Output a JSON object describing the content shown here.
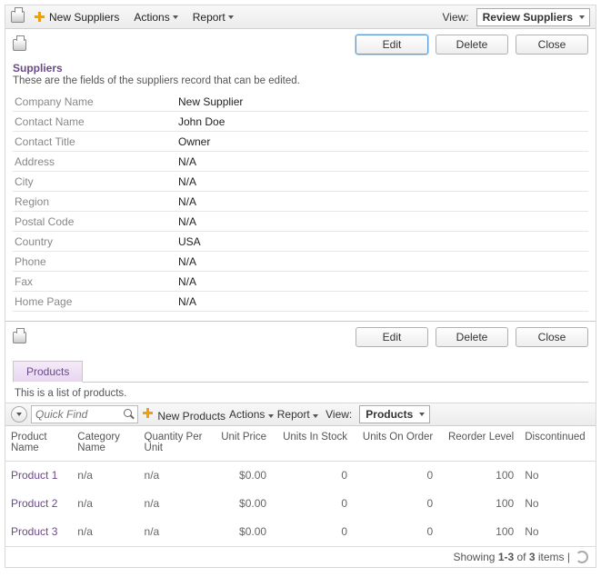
{
  "topbar": {
    "new_label": "New Suppliers",
    "actions_label": "Actions",
    "report_label": "Report",
    "view_label": "View:",
    "view_value": "Review Suppliers"
  },
  "actions": {
    "edit": "Edit",
    "delete": "Delete",
    "close": "Close"
  },
  "suppliers": {
    "title": "Suppliers",
    "desc": "These are the fields of the suppliers record that can be edited.",
    "fields": [
      {
        "label": "Company Name",
        "value": "New Supplier"
      },
      {
        "label": "Contact Name",
        "value": "John Doe"
      },
      {
        "label": "Contact Title",
        "value": "Owner"
      },
      {
        "label": "Address",
        "value": "N/A"
      },
      {
        "label": "City",
        "value": "N/A"
      },
      {
        "label": "Region",
        "value": "N/A"
      },
      {
        "label": "Postal Code",
        "value": "N/A"
      },
      {
        "label": "Country",
        "value": "USA"
      },
      {
        "label": "Phone",
        "value": "N/A"
      },
      {
        "label": "Fax",
        "value": "N/A"
      },
      {
        "label": "Home Page",
        "value": "N/A"
      }
    ]
  },
  "products": {
    "tab": "Products",
    "desc": "This is a list of products.",
    "quickfind": "Quick Find",
    "new_label": "New Products",
    "actions_label": "Actions",
    "report_label": "Report",
    "view_label": "View:",
    "view_value": "Products",
    "columns": [
      "Product Name",
      "Category Name",
      "Quantity Per Unit",
      "Unit Price",
      "Units In Stock",
      "Units On Order",
      "Reorder Level",
      "Discontinued"
    ],
    "rows": [
      {
        "name": "Product 1",
        "cat": "n/a",
        "qpu": "n/a",
        "price": "$0.00",
        "stock": "0",
        "order": "0",
        "reorder": "100",
        "disc": "No"
      },
      {
        "name": "Product 2",
        "cat": "n/a",
        "qpu": "n/a",
        "price": "$0.00",
        "stock": "0",
        "order": "0",
        "reorder": "100",
        "disc": "No"
      },
      {
        "name": "Product 3",
        "cat": "n/a",
        "qpu": "n/a",
        "price": "$0.00",
        "stock": "0",
        "order": "0",
        "reorder": "100",
        "disc": "No"
      }
    ],
    "footer": {
      "prefix": "Showing ",
      "range": "1-3",
      "mid": " of ",
      "total": "3",
      "suffix": " items | "
    }
  }
}
